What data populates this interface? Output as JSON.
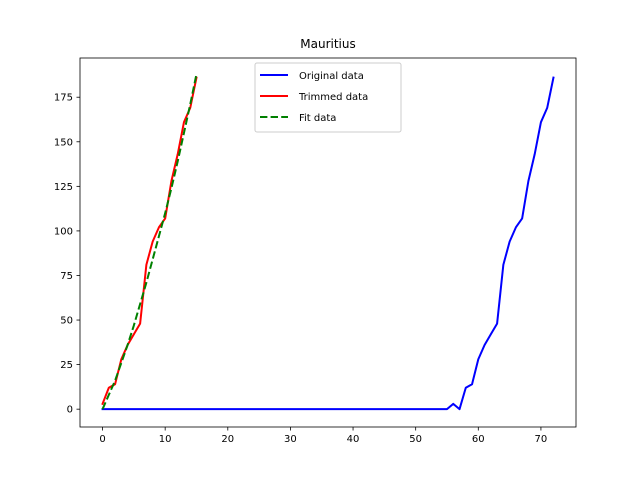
{
  "chart_data": {
    "type": "line",
    "title": "Mauritius",
    "xlabel": "",
    "ylabel": "",
    "xlim": [
      -3.6,
      75.6
    ],
    "ylim": [
      -10,
      197
    ],
    "xticks": [
      0,
      10,
      20,
      30,
      40,
      50,
      60,
      70
    ],
    "yticks": [
      0,
      25,
      50,
      75,
      100,
      125,
      150,
      175
    ],
    "grid": false,
    "legend": "upper-center",
    "series": [
      {
        "name": "Original data",
        "color": "#0000ff",
        "style": "solid",
        "x": [
          0,
          1,
          2,
          3,
          4,
          5,
          6,
          7,
          8,
          9,
          10,
          11,
          12,
          13,
          14,
          15,
          16,
          17,
          18,
          19,
          20,
          21,
          22,
          23,
          24,
          25,
          26,
          27,
          28,
          29,
          30,
          31,
          32,
          33,
          34,
          35,
          36,
          37,
          38,
          39,
          40,
          41,
          42,
          43,
          44,
          45,
          46,
          47,
          48,
          49,
          50,
          51,
          52,
          53,
          54,
          55,
          56,
          57,
          58,
          59,
          60,
          61,
          62,
          63,
          64,
          65,
          66,
          67,
          68,
          69,
          70,
          71,
          72
        ],
        "y": [
          0,
          0,
          0,
          0,
          0,
          0,
          0,
          0,
          0,
          0,
          0,
          0,
          0,
          0,
          0,
          0,
          0,
          0,
          0,
          0,
          0,
          0,
          0,
          0,
          0,
          0,
          0,
          0,
          0,
          0,
          0,
          0,
          0,
          0,
          0,
          0,
          0,
          0,
          0,
          0,
          0,
          0,
          0,
          0,
          0,
          0,
          0,
          0,
          0,
          0,
          0,
          0,
          0,
          0,
          0,
          0,
          3,
          0,
          12,
          14,
          28,
          36,
          42,
          48,
          81,
          94,
          102,
          107,
          128,
          143,
          161,
          169,
          186
        ]
      },
      {
        "name": "Trimmed data",
        "color": "#ff0000",
        "style": "solid",
        "x": [
          0,
          1,
          2,
          3,
          4,
          5,
          6,
          7,
          8,
          9,
          10,
          11,
          12,
          13,
          14,
          15
        ],
        "y": [
          3,
          12,
          14,
          28,
          36,
          42,
          48,
          81,
          94,
          102,
          107,
          128,
          143,
          161,
          169,
          186
        ]
      },
      {
        "name": "Fit data",
        "color": "#008000",
        "style": "dashed",
        "x": [
          0,
          1,
          2,
          3,
          4,
          5,
          6,
          7,
          8,
          9,
          10,
          11,
          12,
          13,
          14,
          15
        ],
        "y": [
          0,
          8,
          16,
          26,
          36,
          47,
          59,
          71,
          84,
          97,
          110,
          124,
          139,
          155,
          171,
          188
        ]
      }
    ]
  }
}
